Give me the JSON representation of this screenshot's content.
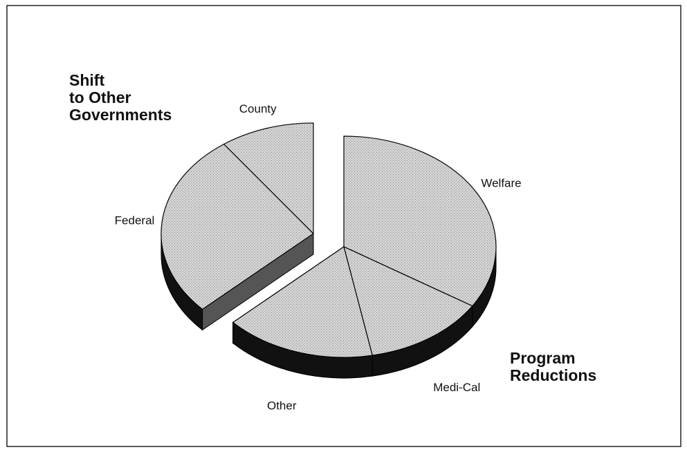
{
  "chart_data": {
    "type": "pie3d",
    "groups": [
      {
        "label_lines": [
          "Program",
          "Reductions"
        ],
        "exploded": false,
        "categories": [
          "Welfare",
          "Medi-Cal",
          "Other"
        ],
        "values": [
          34,
          13,
          16
        ]
      },
      {
        "label_lines": [
          "Shift",
          "to Other",
          "Governments"
        ],
        "exploded": true,
        "categories": [
          "Federal",
          "County"
        ],
        "values": [
          27,
          10
        ]
      }
    ],
    "color": "#c9c9c9",
    "side_color": "#111111"
  }
}
